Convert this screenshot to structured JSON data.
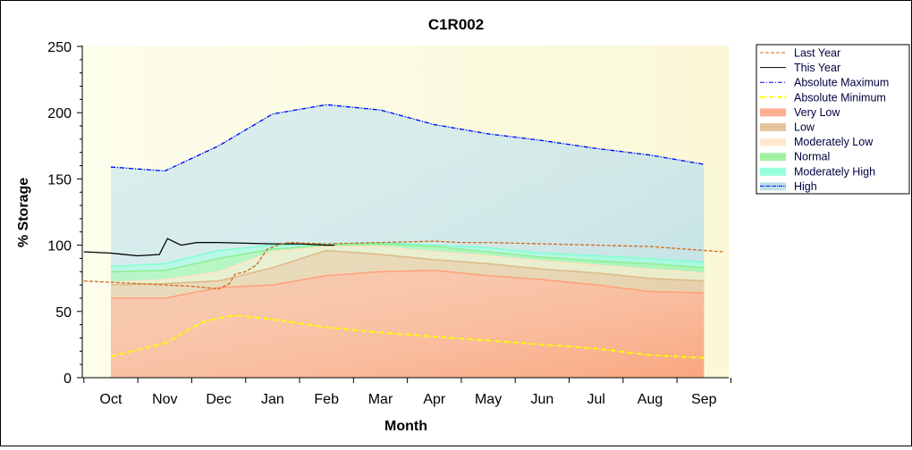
{
  "chart_data": {
    "type": "area",
    "title": "C1R002",
    "xlabel": "Month",
    "ylabel": "% Storage",
    "ylim": [
      0,
      250
    ],
    "yticks": [
      0,
      50,
      100,
      150,
      200,
      250
    ],
    "categories": [
      "Oct",
      "Nov",
      "Dec",
      "Jan",
      "Feb",
      "Mar",
      "Apr",
      "May",
      "Jun",
      "Jul",
      "Aug",
      "Sep"
    ],
    "legend_position": "right",
    "bands": [
      {
        "name": "Very Low",
        "color": "#ffa07a",
        "top": [
          60,
          60,
          68,
          70,
          77,
          80,
          81,
          77,
          74,
          70,
          65,
          64
        ]
      },
      {
        "name": "Low",
        "color": "#deb887",
        "top": [
          70,
          71,
          73,
          83,
          96,
          93,
          89,
          86,
          82,
          79,
          75,
          73
        ]
      },
      {
        "name": "Moderately Low",
        "color": "#ffe4c4",
        "top": [
          72,
          74,
          80,
          95,
          99,
          99,
          95,
          92,
          88,
          85,
          82,
          79
        ]
      },
      {
        "name": "Normal",
        "color": "#90ee90",
        "top": [
          80,
          81,
          90,
          97,
          100,
          101,
          99,
          95,
          91,
          88,
          86,
          83
        ]
      },
      {
        "name": "Moderately High",
        "color": "#7fffd4",
        "top": [
          84,
          86,
          96,
          100,
          101,
          102,
          100,
          98,
          94,
          92,
          90,
          87
        ]
      },
      {
        "name": "High",
        "color": "#add8e6",
        "top": [
          159,
          156,
          175,
          199,
          206,
          202,
          191,
          184,
          179,
          173,
          168,
          161
        ]
      }
    ],
    "lines": [
      {
        "name": "Last Year",
        "color": "#d2691e",
        "style": "dashed",
        "points": [
          [
            -0.5,
            73
          ],
          [
            0,
            72
          ],
          [
            1,
            70
          ],
          [
            1.5,
            69
          ],
          [
            2,
            67
          ],
          [
            2.2,
            71
          ],
          [
            2.3,
            78
          ],
          [
            2.5,
            80
          ],
          [
            2.7,
            85
          ],
          [
            2.9,
            97
          ],
          [
            3.1,
            100
          ],
          [
            3.3,
            102
          ],
          [
            4,
            101
          ],
          [
            5,
            102
          ],
          [
            6,
            103
          ],
          [
            6.5,
            102
          ],
          [
            7,
            102
          ],
          [
            8,
            101
          ],
          [
            9,
            100
          ],
          [
            10,
            99
          ],
          [
            11,
            96
          ],
          [
            11.35,
            95
          ]
        ]
      },
      {
        "name": "This Year",
        "color": "#000000",
        "style": "solid",
        "points": [
          [
            -0.5,
            95
          ],
          [
            0,
            94
          ],
          [
            0.5,
            92
          ],
          [
            0.9,
            93
          ],
          [
            1.05,
            105
          ],
          [
            1.3,
            100
          ],
          [
            1.6,
            102
          ],
          [
            2,
            102
          ],
          [
            3,
            101
          ],
          [
            3.5,
            101
          ],
          [
            4,
            100
          ],
          [
            4.15,
            100
          ]
        ]
      },
      {
        "name": "Absolute Maximum",
        "color": "#0000ff",
        "style": "dashdot",
        "points": [
          [
            0,
            159
          ],
          [
            1,
            156
          ],
          [
            2,
            175
          ],
          [
            3,
            199
          ],
          [
            4,
            206
          ],
          [
            5,
            202
          ],
          [
            6,
            191
          ],
          [
            7,
            184
          ],
          [
            8,
            179
          ],
          [
            9,
            173
          ],
          [
            10,
            168
          ],
          [
            11,
            161
          ]
        ]
      },
      {
        "name": "Absolute Minimum",
        "color": "#ffff00",
        "style": "dashdot",
        "points": [
          [
            0,
            16
          ],
          [
            1,
            26
          ],
          [
            1.7,
            42
          ],
          [
            2,
            45
          ],
          [
            2.3,
            47
          ],
          [
            3,
            44
          ],
          [
            4,
            38
          ],
          [
            5,
            34
          ],
          [
            6,
            31
          ],
          [
            7,
            28
          ],
          [
            8,
            25
          ],
          [
            9,
            22
          ],
          [
            10,
            17
          ],
          [
            11,
            15
          ]
        ]
      }
    ],
    "legend": [
      "Last Year",
      "This Year",
      "Absolute Maximum",
      "Absolute Minimum",
      "Very Low",
      "Low",
      "Moderately Low",
      "Normal",
      "Moderately High",
      "High"
    ]
  }
}
